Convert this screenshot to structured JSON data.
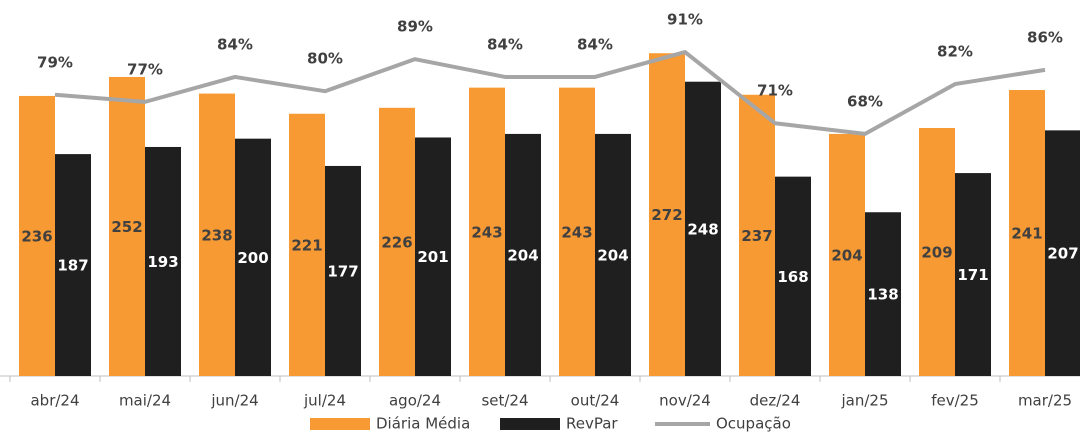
{
  "chart_data": {
    "type": "bar",
    "categories": [
      "abr/24",
      "mai/24",
      "jun/24",
      "jul/24",
      "ago/24",
      "set/24",
      "out/24",
      "nov/24",
      "dez/24",
      "jan/25",
      "fev/25",
      "mar/25"
    ],
    "series": [
      {
        "name": "Diária Média",
        "color": "#f79a33",
        "values": [
          236,
          252,
          238,
          221,
          226,
          243,
          243,
          272,
          237,
          204,
          209,
          241
        ]
      },
      {
        "name": "RevPar",
        "color": "#1f1f1f",
        "values": [
          187,
          193,
          200,
          177,
          201,
          204,
          204,
          248,
          168,
          138,
          171,
          207
        ]
      },
      {
        "name": "Ocupação",
        "color": "#a6a6a6",
        "axis": "y2",
        "type": "line",
        "values": [
          79,
          77,
          84,
          80,
          89,
          84,
          84,
          91,
          71,
          68,
          82,
          86
        ],
        "value_labels": [
          "79%",
          "77%",
          "84%",
          "80%",
          "89%",
          "84%",
          "84%",
          "91%",
          "71%",
          "68%",
          "82%",
          "86%"
        ]
      }
    ],
    "ylim": [
      0,
      300
    ],
    "y2lim": [
      0,
      100
    ]
  }
}
